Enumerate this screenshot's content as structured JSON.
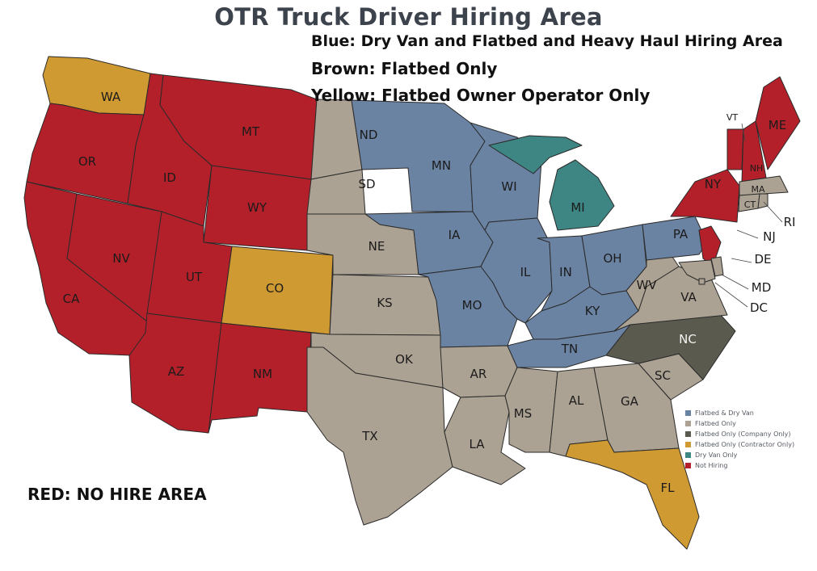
{
  "title": "OTR Truck Driver Hiring Area",
  "notes": {
    "blue": "Blue: Dry Van and Flatbed and Heavy Haul Hiring Area",
    "brown": "Brown: Flatbed Only",
    "yellow": "Yellow: Flatbed Owner Operator Only",
    "red": "RED: NO HIRE AREA"
  },
  "colors": {
    "flatbed_dry_van": "#6b83a3",
    "flatbed_only": "#aca293",
    "flatbed_company": "#5b5a4f",
    "flatbed_contractor": "#d09a32",
    "dry_van_only": "#3d8683",
    "not_hiring": "#b4202a"
  },
  "legend": [
    {
      "label": "Flatbed & Dry Van",
      "color_key": "flatbed_dry_van"
    },
    {
      "label": "Flatbed Only",
      "color_key": "flatbed_only"
    },
    {
      "label": "Flatbed Only (Company Only)",
      "color_key": "flatbed_company"
    },
    {
      "label": "Flatbed Only (Contractor Only)",
      "color_key": "flatbed_contractor"
    },
    {
      "label": "Dry Van Only",
      "color_key": "dry_van_only"
    },
    {
      "label": "Not Hiring",
      "color_key": "not_hiring"
    }
  ],
  "states": {
    "WA": {
      "label": "WA",
      "category": "flatbed_contractor"
    },
    "OR": {
      "label": "OR",
      "category": "not_hiring"
    },
    "CA": {
      "label": "CA",
      "category": "not_hiring"
    },
    "NV": {
      "label": "NV",
      "category": "not_hiring"
    },
    "ID": {
      "label": "ID",
      "category": "not_hiring"
    },
    "MT": {
      "label": "MT",
      "category": "not_hiring"
    },
    "WY": {
      "label": "WY",
      "category": "not_hiring"
    },
    "UT": {
      "label": "UT",
      "category": "not_hiring"
    },
    "CO": {
      "label": "CO",
      "category": "flatbed_contractor"
    },
    "AZ": {
      "label": "AZ",
      "category": "not_hiring"
    },
    "NM": {
      "label": "NM",
      "category": "not_hiring"
    },
    "ND": {
      "label": "ND",
      "category": "flatbed_only"
    },
    "SD": {
      "label": "SD",
      "category": "flatbed_only"
    },
    "NE": {
      "label": "NE",
      "category": "flatbed_only"
    },
    "KS": {
      "label": "KS",
      "category": "flatbed_only"
    },
    "OK": {
      "label": "OK",
      "category": "flatbed_only"
    },
    "TX": {
      "label": "TX",
      "category": "flatbed_only"
    },
    "MN": {
      "label": "MN",
      "category": "flatbed_dry_van"
    },
    "IA": {
      "label": "IA",
      "category": "flatbed_dry_van"
    },
    "MO": {
      "label": "MO",
      "category": "flatbed_dry_van"
    },
    "AR": {
      "label": "AR",
      "category": "flatbed_only"
    },
    "LA": {
      "label": "LA",
      "category": "flatbed_only"
    },
    "WI": {
      "label": "WI",
      "category": "flatbed_dry_van"
    },
    "IL": {
      "label": "IL",
      "category": "flatbed_dry_van"
    },
    "MI": {
      "label": "MI",
      "category": "dry_van_only"
    },
    "IN": {
      "label": "IN",
      "category": "flatbed_dry_van"
    },
    "OH": {
      "label": "OH",
      "category": "flatbed_dry_van"
    },
    "KY": {
      "label": "KY",
      "category": "flatbed_dry_van"
    },
    "TN": {
      "label": "TN",
      "category": "flatbed_dry_van"
    },
    "MS": {
      "label": "MS",
      "category": "flatbed_only"
    },
    "AL": {
      "label": "AL",
      "category": "flatbed_only"
    },
    "GA": {
      "label": "GA",
      "category": "flatbed_only"
    },
    "FL": {
      "label": "FL",
      "category": "flatbed_contractor"
    },
    "SC": {
      "label": "SC",
      "category": "flatbed_only"
    },
    "NC": {
      "label": "NC",
      "category": "flatbed_company"
    },
    "VA": {
      "label": "VA",
      "category": "flatbed_only"
    },
    "WV": {
      "label": "WV",
      "category": "flatbed_only"
    },
    "PA": {
      "label": "PA",
      "category": "flatbed_dry_van"
    },
    "NY": {
      "label": "NY",
      "category": "not_hiring"
    },
    "VT": {
      "label": "VT",
      "category": "not_hiring"
    },
    "NH": {
      "label": "NH",
      "category": "not_hiring"
    },
    "ME": {
      "label": "ME",
      "category": "not_hiring"
    },
    "MA": {
      "label": "MA",
      "category": "flatbed_only"
    },
    "CT": {
      "label": "CT",
      "category": "flatbed_only"
    },
    "RI": {
      "label": "RI",
      "category": "flatbed_only"
    },
    "NJ": {
      "label": "NJ",
      "category": "not_hiring"
    },
    "DE": {
      "label": "DE",
      "category": "flatbed_only"
    },
    "MD": {
      "label": "MD",
      "category": "flatbed_only"
    },
    "DC": {
      "label": "DC",
      "category": "flatbed_only"
    }
  }
}
